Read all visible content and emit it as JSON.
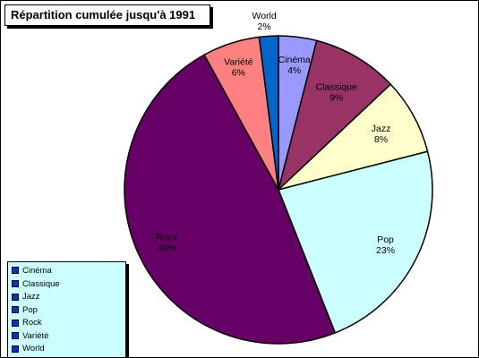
{
  "chart_data": {
    "type": "pie",
    "title": "Répartition cumulée jusqu'à 1991",
    "categories": [
      "Cinéma",
      "Classique",
      "Jazz",
      "Pop",
      "Rock",
      "Variété",
      "World"
    ],
    "values": [
      4,
      9,
      8,
      23,
      48,
      6,
      2
    ],
    "labels": [
      "4%",
      "9%",
      "8%",
      "23%",
      "48%",
      "6%",
      "2%"
    ],
    "colors": [
      "#9999ff",
      "#993366",
      "#ffffcc",
      "#ccffff",
      "#660066",
      "#ff8080",
      "#0066cc"
    ],
    "legend": {
      "position": "bottom-left",
      "entries": [
        "Cinéma",
        "Classique",
        "Jazz",
        "Pop",
        "Rock",
        "Variété",
        "World"
      ],
      "marker_color": "#0033cc",
      "background": "#ccffff"
    }
  }
}
